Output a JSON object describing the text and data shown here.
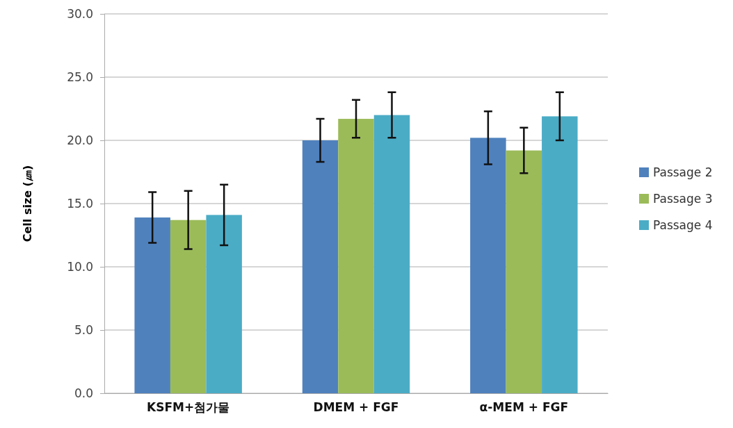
{
  "chart_data": {
    "type": "bar",
    "ylabel": "Cell size (㎛)",
    "categories": [
      "KSFM+첨가물",
      "DMEM + FGF",
      "α-MEM + FGF"
    ],
    "series": [
      {
        "name": "Passage 2",
        "color": "#4f81bd",
        "values": [
          13.9,
          20.0,
          20.2
        ],
        "errors": [
          2.0,
          1.7,
          2.1
        ]
      },
      {
        "name": "Passage 3",
        "color": "#9bbb59",
        "values": [
          13.7,
          21.7,
          19.2
        ],
        "errors": [
          2.3,
          1.5,
          1.8
        ]
      },
      {
        "name": "Passage 4",
        "color": "#4bacc6",
        "values": [
          14.1,
          22.0,
          21.9
        ],
        "errors": [
          2.4,
          1.8,
          1.9
        ]
      }
    ],
    "ylim": [
      0,
      30
    ],
    "yticks": [
      {
        "value": 0,
        "label": "0.0"
      },
      {
        "value": 5,
        "label": "5.0"
      },
      {
        "value": 10,
        "label": "10.0"
      },
      {
        "value": 15,
        "label": "15.0"
      },
      {
        "value": 20,
        "label": "20.0"
      },
      {
        "value": 25,
        "label": "25.0"
      },
      {
        "value": 30,
        "label": "30.0"
      }
    ],
    "grid": "y",
    "legend": "right"
  }
}
